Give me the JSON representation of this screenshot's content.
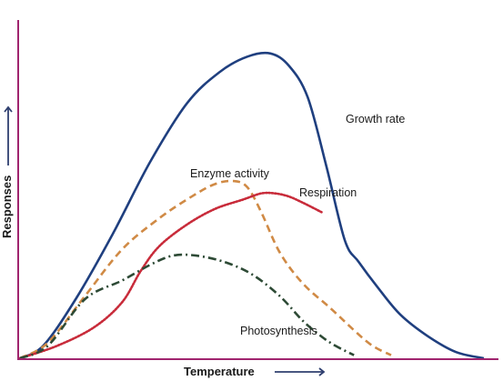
{
  "chart_data": {
    "type": "line",
    "xlabel": "Temperature",
    "ylabel": "Responses",
    "xlim": [
      0,
      100
    ],
    "ylim": [
      0,
      100
    ],
    "ticks": false,
    "grid": false,
    "axis_color": "#a0246e",
    "arrow_color": "#2f3f6f",
    "series": [
      {
        "name": "Growth rate",
        "color": "#1f3f7f",
        "dash": "solid",
        "x": [
          0,
          5,
          12,
          20,
          28,
          36,
          43,
          49,
          54,
          58,
          62,
          66,
          70,
          73,
          77,
          82,
          88,
          94,
          100
        ],
        "y": [
          0,
          4,
          19,
          40,
          63,
          82,
          92,
          97,
          98,
          94,
          84,
          62,
          38,
          31,
          23,
          14,
          7,
          2,
          0
        ]
      },
      {
        "name": "Enzyme activity",
        "color": "#d08a45",
        "dash": "dashed",
        "x": [
          0,
          6,
          14,
          22,
          30,
          37,
          42,
          46,
          49,
          52,
          56,
          61,
          67,
          72,
          76,
          80
        ],
        "y": [
          0,
          5,
          20,
          35,
          45,
          52,
          56,
          57,
          55,
          47,
          34,
          24,
          16,
          9,
          4,
          1
        ]
      },
      {
        "name": "Respiration",
        "color": "#c82b3a",
        "dash": "dotted",
        "x": [
          0,
          8,
          16,
          22,
          26,
          30,
          36,
          42,
          48,
          52,
          55,
          58,
          61,
          65
        ],
        "y": [
          0,
          4,
          10,
          18,
          28,
          36,
          43,
          48,
          51,
          53,
          53,
          52,
          50,
          47
        ]
      },
      {
        "name": "Photosynthesis",
        "color": "#2d4a35",
        "dash": "dashdot",
        "x": [
          0,
          6,
          14,
          22,
          28,
          33,
          38,
          44,
          50,
          56,
          61,
          65,
          68,
          72
        ],
        "y": [
          0,
          4,
          19,
          25,
          30,
          33,
          33,
          31,
          27,
          20,
          12,
          7,
          4,
          1
        ]
      }
    ]
  }
}
